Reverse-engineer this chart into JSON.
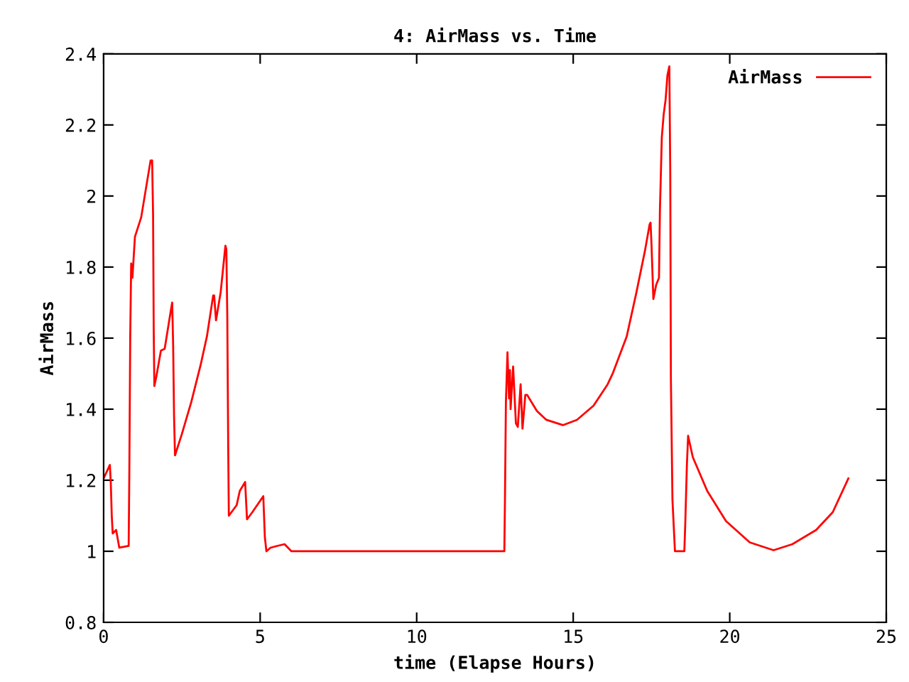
{
  "chart_data": {
    "type": "line",
    "title": "4: AirMass vs. Time",
    "xlabel": "time (Elapse Hours)",
    "ylabel": "AirMass",
    "xlim": [
      0,
      25
    ],
    "xticks": [
      0,
      5,
      10,
      15,
      20,
      25
    ],
    "ylim": [
      0.8,
      2.4
    ],
    "yticks": [
      0.8,
      1,
      1.2,
      1.4,
      1.6,
      1.8,
      2,
      2.2,
      2.4
    ],
    "grid": false,
    "legend": "top right",
    "marker": "none",
    "line_style": "solid",
    "series": [
      {
        "name": "AirMass",
        "color": "#ff0000",
        "x": [
          0,
          0.2,
          0.23,
          0.26,
          0.29,
          0.4,
          0.5,
          0.8,
          0.82,
          0.85,
          0.88,
          0.92,
          1.0,
          1.2,
          1.35,
          1.5,
          1.55,
          1.58,
          1.6,
          1.62,
          1.68,
          1.83,
          1.95,
          2.16,
          2.19,
          2.22,
          2.25,
          2.28,
          2.5,
          2.8,
          3.1,
          3.3,
          3.5,
          3.53,
          3.59,
          3.74,
          3.89,
          3.92,
          3.95,
          3.98,
          4.0,
          4.25,
          4.35,
          4.52,
          4.58,
          4.75,
          5.1,
          5.15,
          5.2,
          5.33,
          5.54,
          5.78,
          6.0,
          12.8,
          12.82,
          12.85,
          12.9,
          12.95,
          12.98,
          13.0,
          13.08,
          13.17,
          13.23,
          13.32,
          13.38,
          13.47,
          13.53,
          13.84,
          14.14,
          14.67,
          15.12,
          15.65,
          16.1,
          16.26,
          16.56,
          16.71,
          17.01,
          17.29,
          17.44,
          17.47,
          17.5,
          17.56,
          17.65,
          17.74,
          17.77,
          17.83,
          17.89,
          17.95,
          18.01,
          18.07,
          18.1,
          18.12,
          18.17,
          18.25,
          18.55,
          18.58,
          18.63,
          18.67,
          18.82,
          19.28,
          19.88,
          20.64,
          21.4,
          22.0,
          22.76,
          23.29,
          23.79
        ],
        "values": [
          1.205,
          1.243,
          1.19,
          1.1,
          1.05,
          1.06,
          1.01,
          1.015,
          1.21,
          1.605,
          1.81,
          1.77,
          1.885,
          1.94,
          2.02,
          2.1,
          2.1,
          1.945,
          1.625,
          1.465,
          1.49,
          1.565,
          1.57,
          1.685,
          1.7,
          1.585,
          1.38,
          1.27,
          1.33,
          1.42,
          1.525,
          1.605,
          1.72,
          1.72,
          1.65,
          1.73,
          1.86,
          1.85,
          1.665,
          1.29,
          1.1,
          1.13,
          1.17,
          1.195,
          1.09,
          1.11,
          1.155,
          1.04,
          1.0,
          1.01,
          1.015,
          1.02,
          1.0,
          1.0,
          1.145,
          1.42,
          1.56,
          1.43,
          1.51,
          1.4,
          1.52,
          1.36,
          1.35,
          1.47,
          1.345,
          1.44,
          1.44,
          1.395,
          1.37,
          1.355,
          1.37,
          1.41,
          1.47,
          1.5,
          1.57,
          1.605,
          1.725,
          1.845,
          1.92,
          1.925,
          1.865,
          1.71,
          1.75,
          1.77,
          1.96,
          2.165,
          2.23,
          2.27,
          2.34,
          2.365,
          2.07,
          1.485,
          1.145,
          1.0,
          1.0,
          1.08,
          1.24,
          1.325,
          1.265,
          1.17,
          1.085,
          1.025,
          1.003,
          1.02,
          1.06,
          1.11,
          1.205
        ]
      }
    ]
  }
}
